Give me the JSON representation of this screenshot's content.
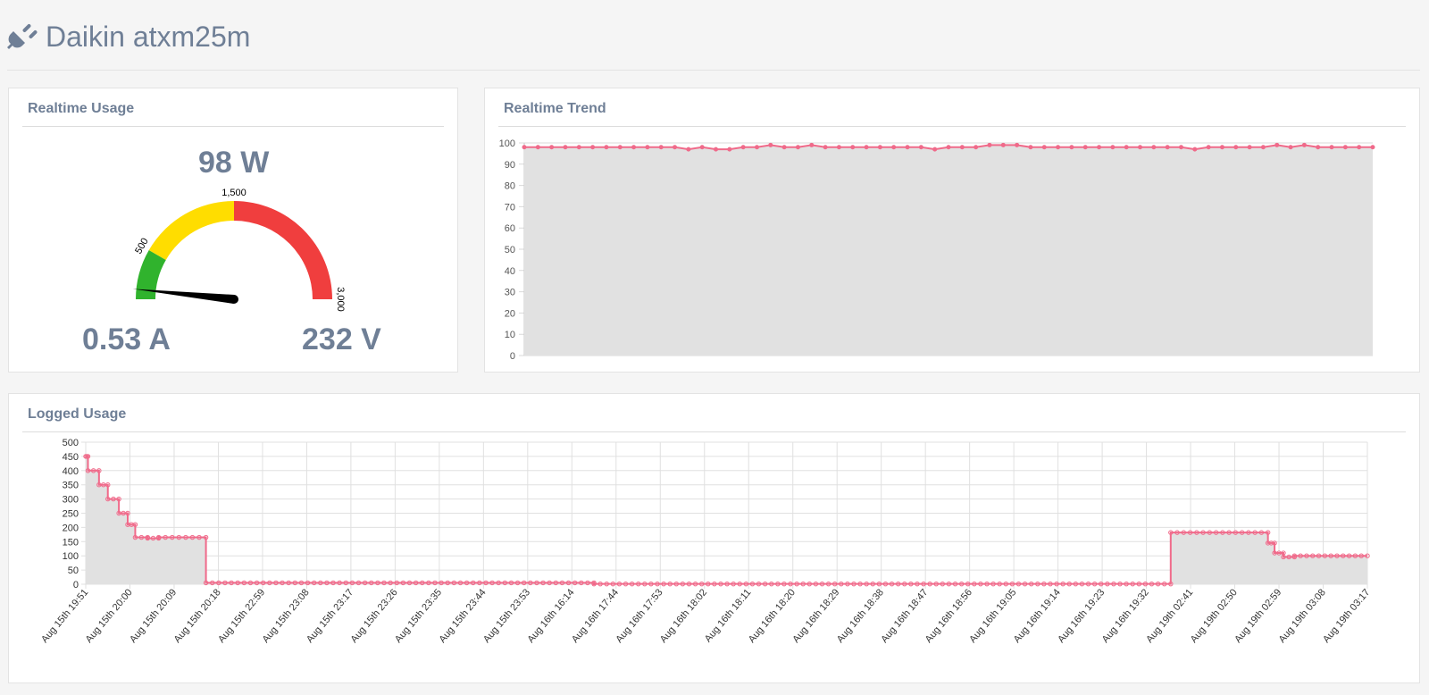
{
  "header": {
    "title": "Daikin atxm25m",
    "icon": "plug-icon"
  },
  "usage": {
    "title": "Realtime Usage",
    "power": "98 W",
    "current": "0.53 A",
    "voltage": "232 V",
    "gauge": {
      "min": 0,
      "max": 3000,
      "value": 98,
      "ticks": [
        "500",
        "1,500",
        "3,000"
      ],
      "zones": [
        {
          "from": 0,
          "to": 500,
          "color": "#30b32d"
        },
        {
          "from": 500,
          "to": 1500,
          "color": "#ffdd00"
        },
        {
          "from": 1500,
          "to": 3000,
          "color": "#f03e3e"
        }
      ]
    }
  },
  "trend": {
    "title": "Realtime Trend",
    "chart_data": {
      "type": "line",
      "ylim": [
        0,
        100
      ],
      "yticks": [
        0,
        10,
        20,
        30,
        40,
        50,
        60,
        70,
        80,
        90,
        100
      ],
      "fill": "#e1e1e1",
      "line_color": "#f06a8a",
      "values": [
        98,
        98,
        98,
        98,
        98,
        98,
        98,
        98,
        98,
        98,
        98,
        98,
        97,
        98,
        97,
        97,
        98,
        98,
        99,
        98,
        98,
        99,
        98,
        98,
        98,
        98,
        98,
        98,
        98,
        98,
        97,
        98,
        98,
        98,
        99,
        99,
        99,
        98,
        98,
        98,
        98,
        98,
        98,
        98,
        98,
        98,
        98,
        98,
        98,
        97,
        98,
        98,
        98,
        98,
        98,
        99,
        98,
        99,
        98,
        98,
        98,
        98,
        98
      ]
    }
  },
  "logged": {
    "title": "Logged Usage",
    "chart_data": {
      "type": "area",
      "ylim": [
        0,
        500
      ],
      "yticks": [
        0,
        50,
        100,
        150,
        200,
        250,
        300,
        350,
        400,
        450,
        500
      ],
      "fill": "#e1e1e1",
      "line_color": "#f06a8a",
      "categories": [
        "Aug 15th 19:51",
        "Aug 15th 20:00",
        "Aug 15th 20:09",
        "Aug 15th 20:18",
        "Aug 15th 22:59",
        "Aug 15th 23:08",
        "Aug 15th 23:17",
        "Aug 15th 23:26",
        "Aug 15th 23:35",
        "Aug 15th 23:44",
        "Aug 15th 23:53",
        "Aug 16th 16:14",
        "Aug 16th 17:44",
        "Aug 16th 17:53",
        "Aug 16th 18:02",
        "Aug 16th 18:11",
        "Aug 16th 18:20",
        "Aug 16th 18:29",
        "Aug 16th 18:38",
        "Aug 16th 18:47",
        "Aug 16th 18:56",
        "Aug 16th 19:05",
        "Aug 16th 19:14",
        "Aug 16th 19:23",
        "Aug 16th 19:32",
        "Aug 19th 02:41",
        "Aug 19th 02:50",
        "Aug 19th 02:59",
        "Aug 19th 03:08",
        "Aug 19th 03:17"
      ],
      "segments": [
        {
          "from": 0,
          "to": 0.05,
          "v": 450
        },
        {
          "from": 0.05,
          "to": 0.3,
          "v": 400
        },
        {
          "from": 0.3,
          "to": 0.5,
          "v": 350
        },
        {
          "from": 0.5,
          "to": 0.75,
          "v": 300
        },
        {
          "from": 0.75,
          "to": 0.95,
          "v": 250
        },
        {
          "from": 0.95,
          "to": 1.12,
          "v": 210
        },
        {
          "from": 1.12,
          "to": 1.4,
          "v": 165
        },
        {
          "from": 1.4,
          "to": 1.65,
          "v": 162
        },
        {
          "from": 1.65,
          "to": 2.72,
          "v": 165
        },
        {
          "from": 2.72,
          "to": 11.5,
          "v": 5
        },
        {
          "from": 11.5,
          "to": 24.55,
          "v": 1
        },
        {
          "from": 24.55,
          "to": 26.75,
          "v": 182
        },
        {
          "from": 26.75,
          "to": 26.9,
          "v": 145
        },
        {
          "from": 26.9,
          "to": 27.1,
          "v": 110
        },
        {
          "from": 27.1,
          "to": 27.35,
          "v": 96
        },
        {
          "from": 27.35,
          "to": 29,
          "v": 100
        }
      ]
    }
  }
}
